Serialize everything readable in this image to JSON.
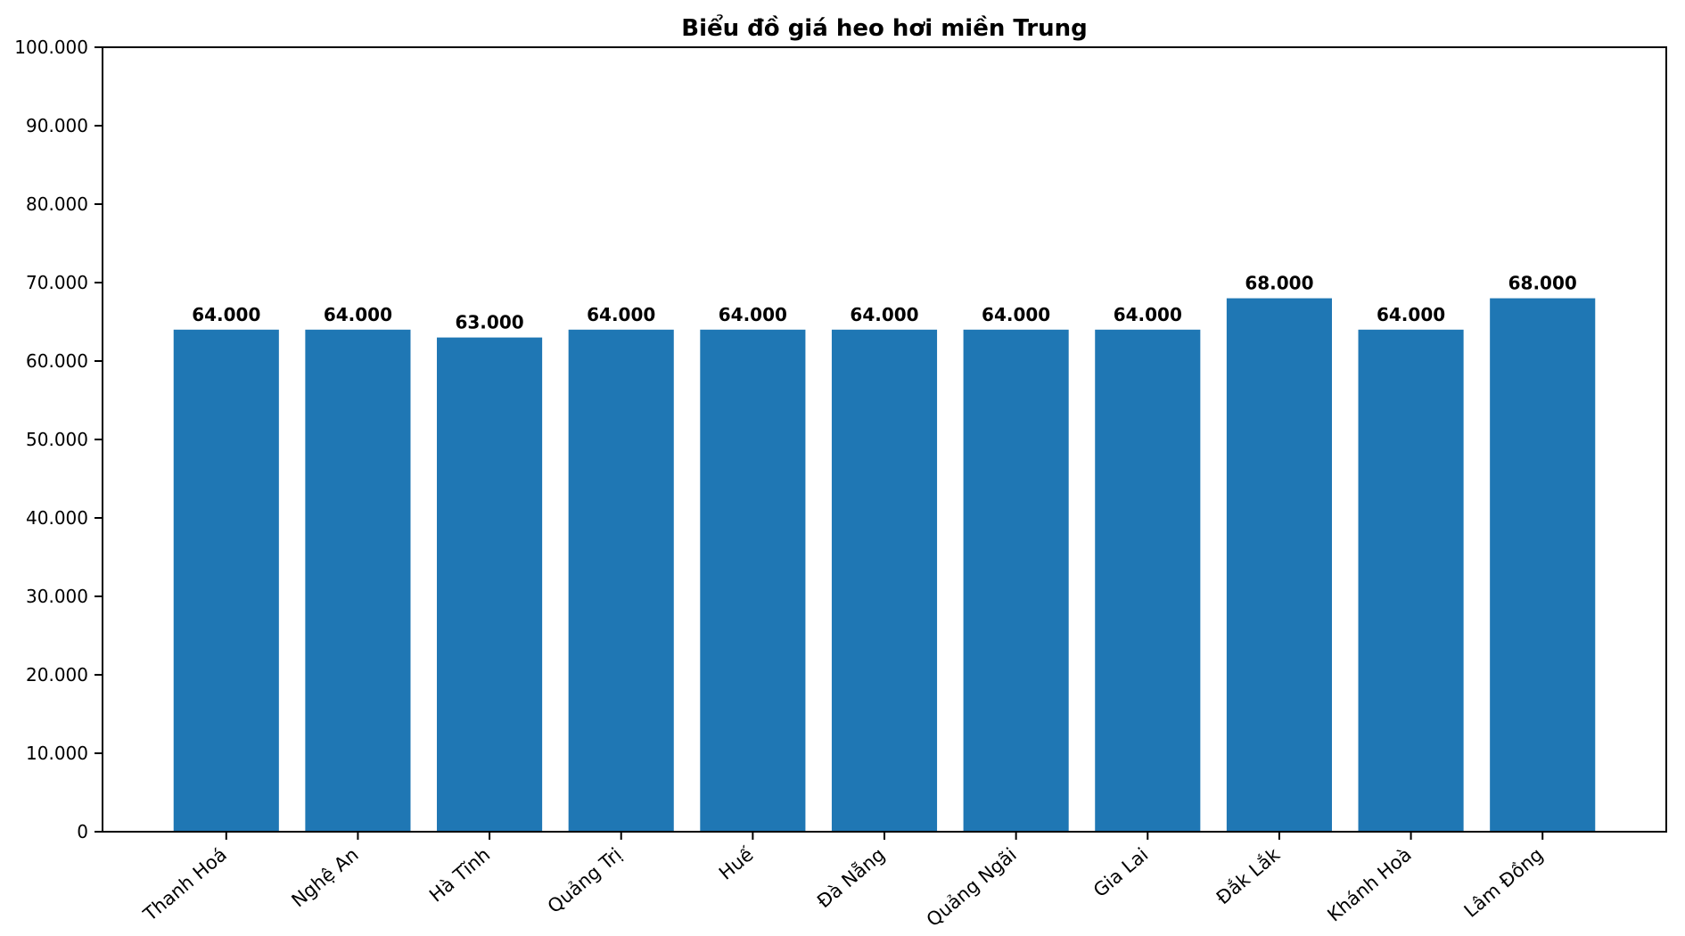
{
  "figure": {
    "background_color": "#ffffff"
  },
  "chart_data": {
    "type": "bar",
    "title": "Biểu đồ giá heo hơi miền Trung",
    "xlabel": "",
    "ylabel": "",
    "categories": [
      "Thanh Hoá",
      "Nghệ An",
      "Hà Tĩnh",
      "Quảng Trị",
      "Huế",
      "Đà Nẵng",
      "Quảng Ngãi",
      "Gia Lai",
      "Đắk Lắk",
      "Khánh Hoà",
      "Lâm Đồng"
    ],
    "values": [
      64000,
      64000,
      63000,
      64000,
      64000,
      64000,
      64000,
      64000,
      68000,
      64000,
      68000
    ],
    "bar_value_labels": [
      "64.000",
      "64.000",
      "63.000",
      "64.000",
      "64.000",
      "64.000",
      "64.000",
      "64.000",
      "68.000",
      "64.000",
      "68.000"
    ],
    "ylim": [
      0,
      100000
    ],
    "yticks": [
      0,
      10000,
      20000,
      30000,
      40000,
      50000,
      60000,
      70000,
      80000,
      90000,
      100000
    ],
    "ytick_labels": [
      "0",
      "10.000",
      "20.000",
      "30.000",
      "40.000",
      "50.000",
      "60.000",
      "70.000",
      "80.000",
      "90.000",
      "100.000"
    ],
    "x_tick_rotation_deg": 40,
    "grid": false,
    "legend": null,
    "bar_color": "#1f77b4",
    "axis_color": "#000000",
    "text_color": "#000000"
  }
}
